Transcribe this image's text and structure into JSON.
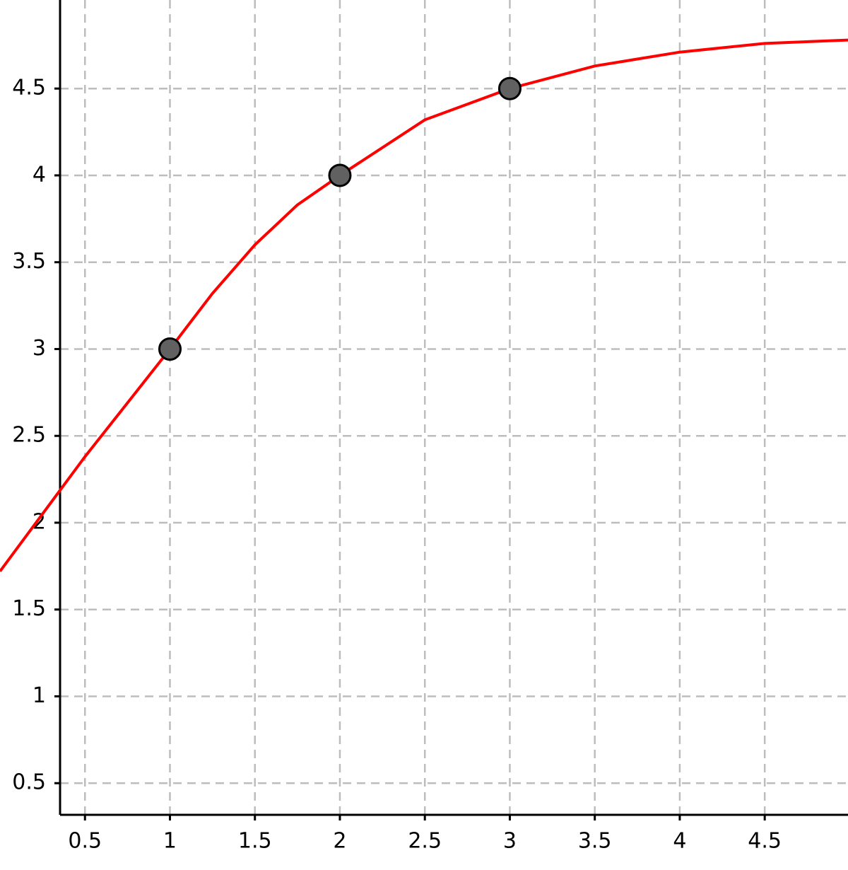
{
  "chart_data": {
    "type": "function-plot",
    "xlim": [
      0,
      4.99
    ],
    "ylim": [
      0,
      5.01
    ],
    "xticks": [
      0.5,
      1,
      1.5,
      2,
      2.5,
      3,
      3.5,
      4,
      4.5
    ],
    "yticks": [
      0.5,
      1,
      1.5,
      2,
      2.5,
      3,
      3.5,
      4,
      4.5
    ],
    "grid": true,
    "curve": {
      "color": "#ff0000",
      "x": [
        0,
        0.25,
        0.5,
        0.75,
        1,
        1.25,
        1.5,
        1.75,
        2,
        2.5,
        3,
        3.5,
        4,
        4.5,
        5
      ],
      "values": [
        1.72,
        2.05,
        2.38,
        2.69,
        3.0,
        3.32,
        3.6,
        3.83,
        4.0,
        4.32,
        4.5,
        4.63,
        4.71,
        4.76,
        4.78
      ]
    },
    "points": {
      "color": "#616161",
      "x": [
        1,
        2,
        3
      ],
      "values": [
        3,
        4,
        4.5
      ]
    }
  }
}
